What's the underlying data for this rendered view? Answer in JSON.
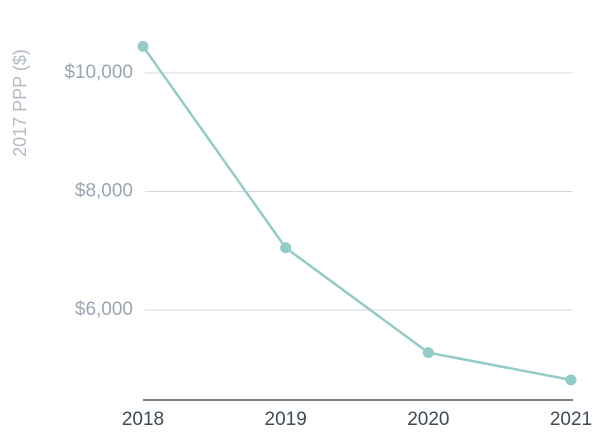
{
  "chart_data": {
    "type": "line",
    "title": "",
    "xlabel": "",
    "ylabel": "2017 PPP ($)",
    "x": [
      "2018",
      "2019",
      "2020",
      "2021"
    ],
    "series": [
      {
        "values": [
          10450,
          7050,
          5280,
          4820
        ]
      }
    ],
    "y_ticks": [
      10000,
      8000,
      6000
    ],
    "y_tick_labels": [
      "$10,000",
      "$8,000",
      "$6,000"
    ],
    "ylim": [
      4520,
      10960
    ],
    "grid": true,
    "legend": "none",
    "colors": {
      "line": "#93cbc7",
      "grid": "#d3d9e3",
      "axis": "#4a5660"
    }
  }
}
